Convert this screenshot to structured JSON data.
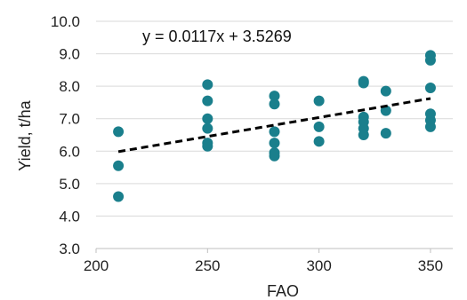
{
  "chart_data": {
    "type": "scatter",
    "title": "",
    "xlabel": "FAO",
    "ylabel": "Yield, t/ha",
    "xlim": [
      200,
      360
    ],
    "ylim": [
      3.0,
      10.0
    ],
    "x_ticks": [
      "200",
      "250",
      "300",
      "350"
    ],
    "y_ticks": [
      "3.0",
      "4.0",
      "5.0",
      "6.0",
      "7.0",
      "8.0",
      "9.0",
      "10.0"
    ],
    "grid": "horizontal",
    "legend": "none",
    "marker_color": "#1a7f8c",
    "trend_color": "#000000",
    "series": [
      {
        "points": [
          [
            210,
            6.6
          ],
          [
            210,
            5.55
          ],
          [
            210,
            4.6
          ],
          [
            250,
            8.05
          ],
          [
            250,
            7.55
          ],
          [
            250,
            7.0
          ],
          [
            250,
            6.7
          ],
          [
            250,
            6.25
          ],
          [
            250,
            6.15
          ],
          [
            280,
            7.7
          ],
          [
            280,
            7.45
          ],
          [
            280,
            6.6
          ],
          [
            280,
            6.25
          ],
          [
            280,
            5.95
          ],
          [
            280,
            5.85
          ],
          [
            300,
            7.55
          ],
          [
            300,
            6.75
          ],
          [
            300,
            6.3
          ],
          [
            320,
            8.15
          ],
          [
            320,
            8.1
          ],
          [
            320,
            7.05
          ],
          [
            320,
            6.9
          ],
          [
            320,
            6.7
          ],
          [
            320,
            6.5
          ],
          [
            330,
            7.85
          ],
          [
            330,
            7.25
          ],
          [
            330,
            6.55
          ],
          [
            350,
            8.95
          ],
          [
            350,
            8.8
          ],
          [
            350,
            7.95
          ],
          [
            350,
            7.15
          ],
          [
            350,
            6.95
          ],
          [
            350,
            6.75
          ]
        ]
      }
    ],
    "trendline": {
      "slope": 0.0117,
      "intercept": 3.5269,
      "x_range": [
        210,
        350
      ],
      "style": "dashed",
      "equation": "y = 0.0117x + 3.5269"
    }
  }
}
